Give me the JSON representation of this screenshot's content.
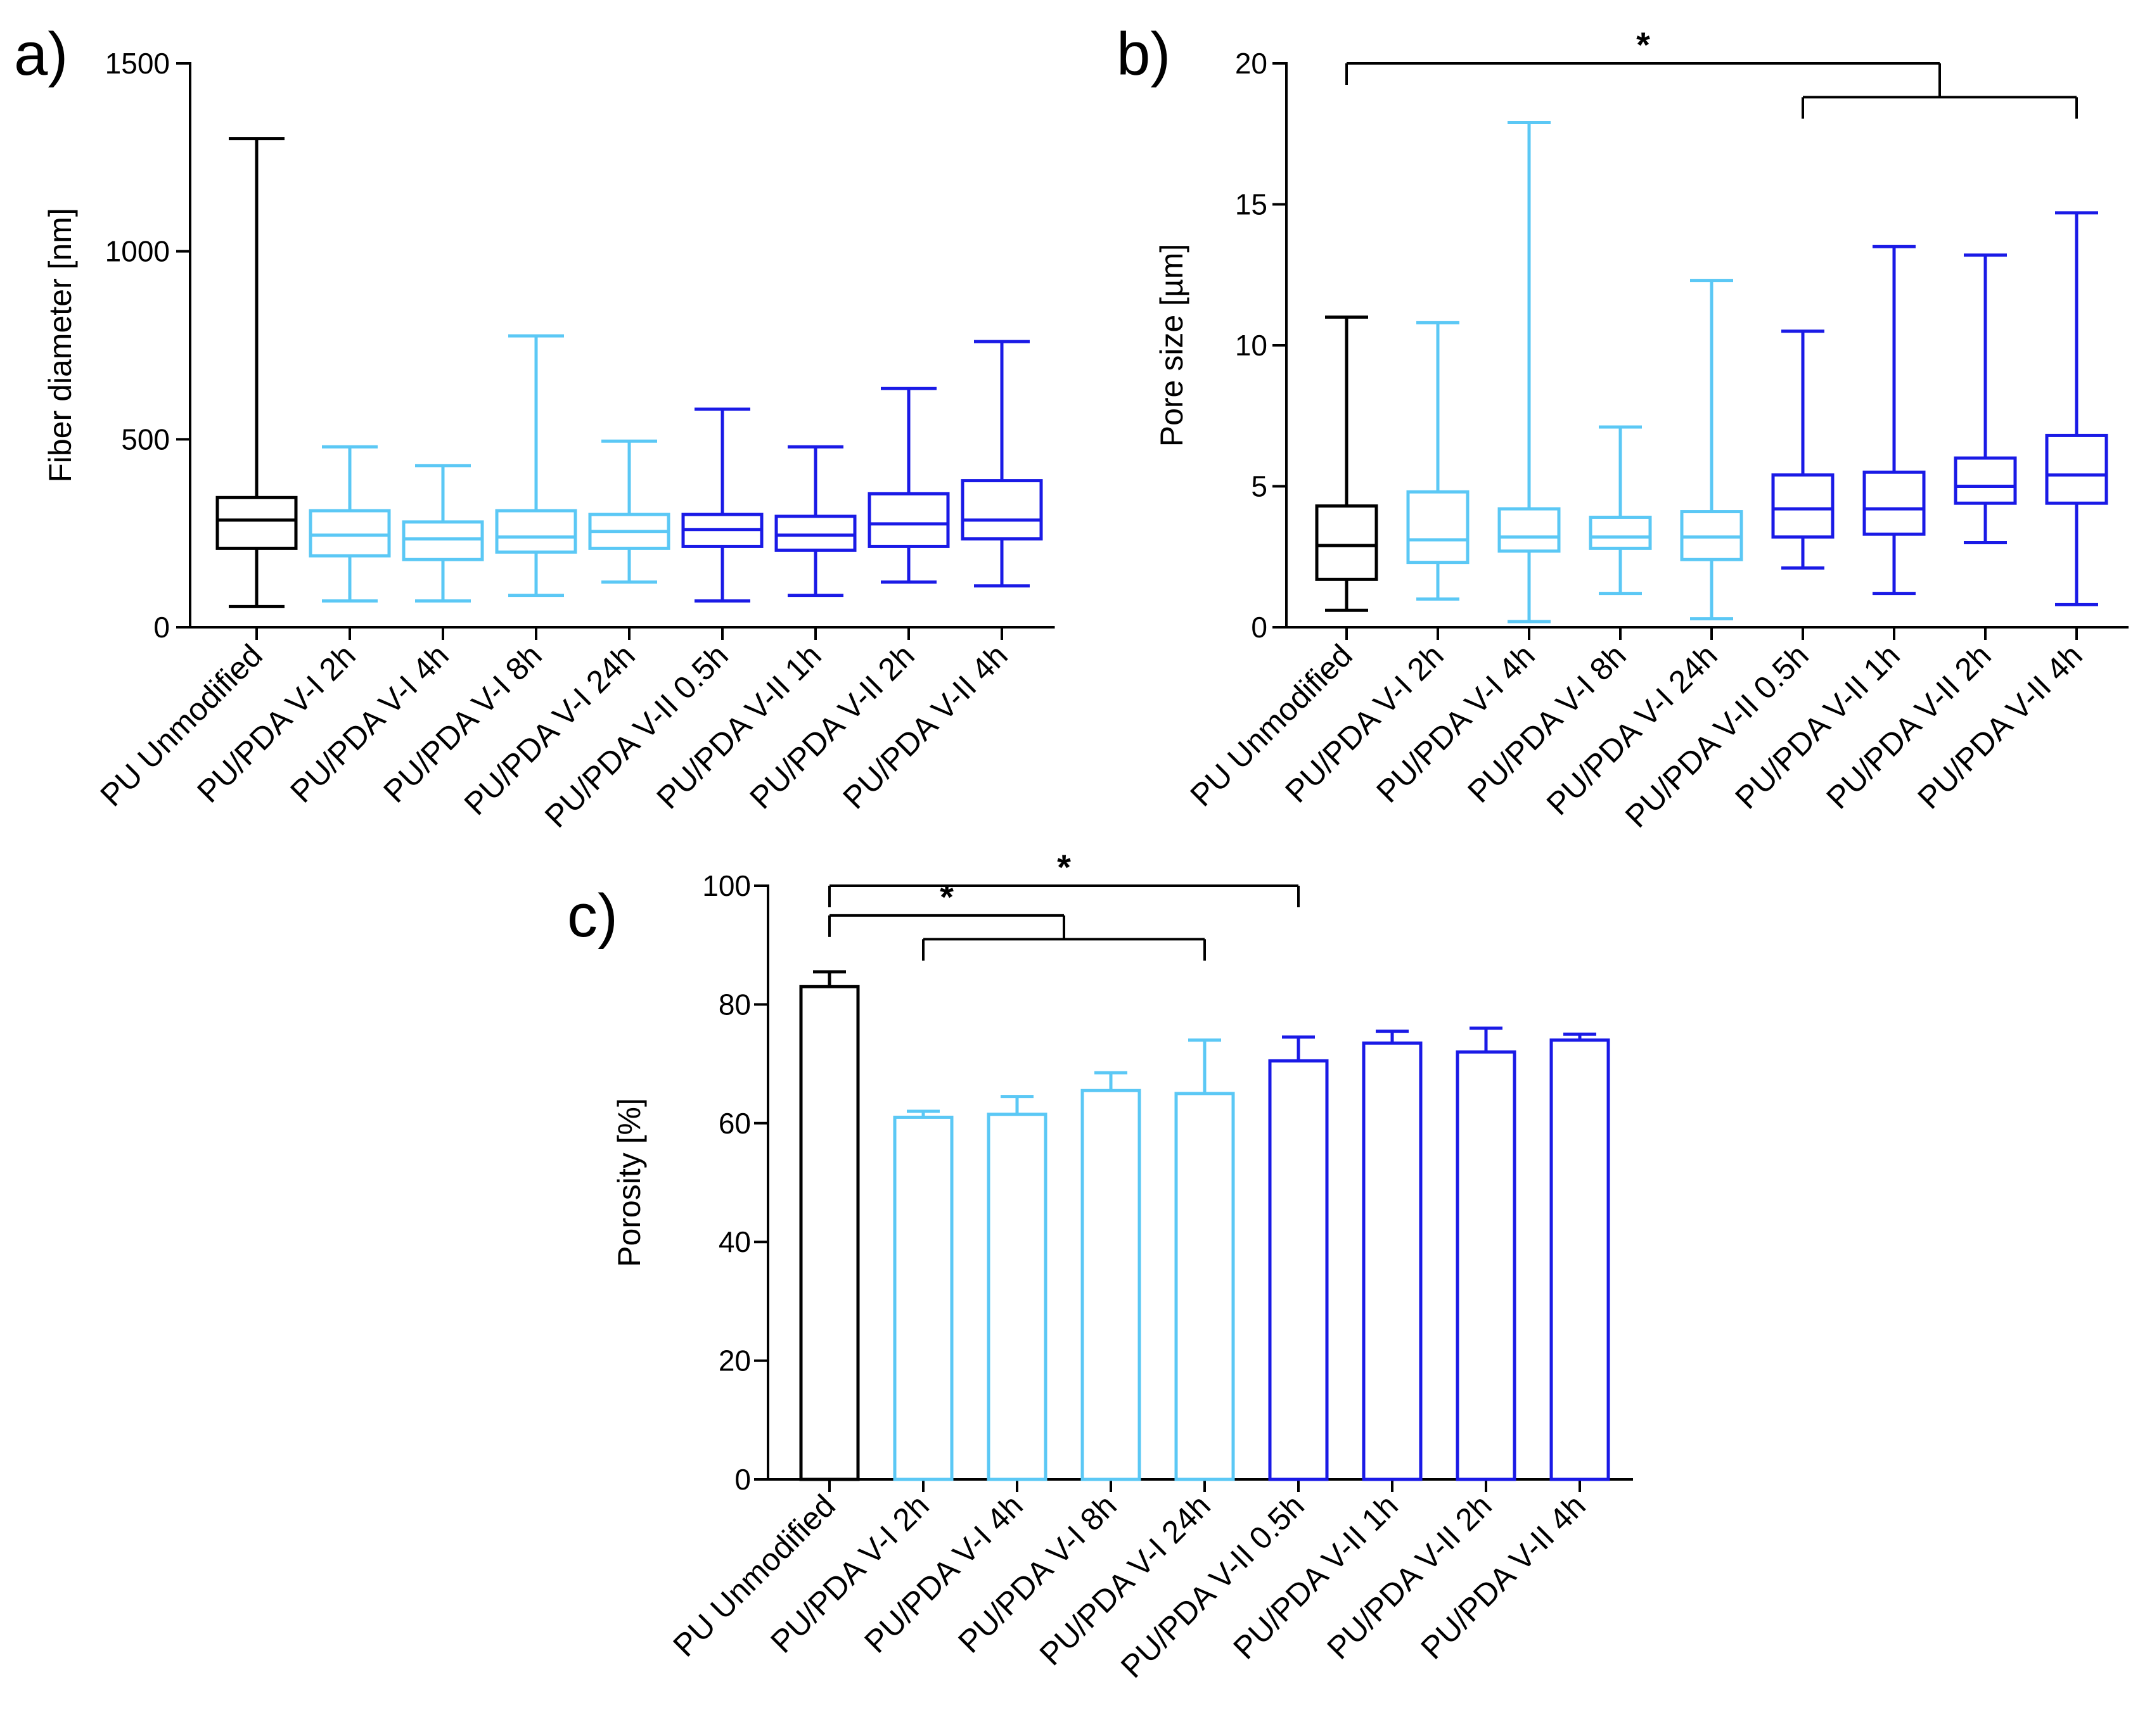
{
  "colors": {
    "black": "#000000",
    "light_blue": "#5bc8f5",
    "blue": "#1a1ae6"
  },
  "category_colors": [
    "black",
    "light_blue",
    "light_blue",
    "light_blue",
    "light_blue",
    "blue",
    "blue",
    "blue",
    "blue"
  ],
  "chart_data": [
    {
      "type": "box",
      "panel": "a)",
      "ylabel": "Fiber diameter [nm]",
      "ylim": [
        0,
        1500
      ],
      "yticks": [
        0,
        500,
        1000,
        1500
      ],
      "categories": [
        "PU Unmodified",
        "PU/PDA V-I 2h",
        "PU/PDA V-I 4h",
        "PU/PDA V-I 8h",
        "PU/PDA V-I 24h",
        "PU/PDA V-II 0.5h",
        "PU/PDA V-II 1h",
        "PU/PDA V-II 2h",
        "PU/PDA V-II 4h"
      ],
      "boxes": [
        {
          "min": 55,
          "q1": 210,
          "median": 285,
          "q3": 345,
          "max": 1300
        },
        {
          "min": 70,
          "q1": 190,
          "median": 245,
          "q3": 310,
          "max": 480
        },
        {
          "min": 70,
          "q1": 180,
          "median": 235,
          "q3": 280,
          "max": 430
        },
        {
          "min": 85,
          "q1": 200,
          "median": 240,
          "q3": 310,
          "max": 775
        },
        {
          "min": 120,
          "q1": 210,
          "median": 255,
          "q3": 300,
          "max": 495
        },
        {
          "min": 70,
          "q1": 215,
          "median": 260,
          "q3": 300,
          "max": 580
        },
        {
          "min": 85,
          "q1": 205,
          "median": 245,
          "q3": 295,
          "max": 480
        },
        {
          "min": 120,
          "q1": 215,
          "median": 275,
          "q3": 355,
          "max": 635
        },
        {
          "min": 110,
          "q1": 235,
          "median": 285,
          "q3": 390,
          "max": 760
        }
      ],
      "significance": []
    },
    {
      "type": "box",
      "panel": "b)",
      "ylabel": "Pore size [µm]",
      "ylim": [
        0,
        20
      ],
      "yticks": [
        0,
        5,
        10,
        15,
        20
      ],
      "categories": [
        "PU Unmodified",
        "PU/PDA V-I 2h",
        "PU/PDA V-I 4h",
        "PU/PDA V-I 8h",
        "PU/PDA V-I 24h",
        "PU/PDA V-II 0.5h",
        "PU/PDA V-II 1h",
        "PU/PDA V-II 2h",
        "PU/PDA V-II 4h"
      ],
      "boxes": [
        {
          "min": 0.6,
          "q1": 1.7,
          "median": 2.9,
          "q3": 4.3,
          "max": 11.0
        },
        {
          "min": 1.0,
          "q1": 2.3,
          "median": 3.1,
          "q3": 4.8,
          "max": 10.8
        },
        {
          "min": 0.2,
          "q1": 2.7,
          "median": 3.2,
          "q3": 4.2,
          "max": 17.9
        },
        {
          "min": 1.2,
          "q1": 2.8,
          "median": 3.2,
          "q3": 3.9,
          "max": 7.1
        },
        {
          "min": 0.3,
          "q1": 2.4,
          "median": 3.2,
          "q3": 4.1,
          "max": 12.3
        },
        {
          "min": 2.1,
          "q1": 3.2,
          "median": 4.2,
          "q3": 5.4,
          "max": 10.5
        },
        {
          "min": 1.2,
          "q1": 3.3,
          "median": 4.2,
          "q3": 5.5,
          "max": 13.5
        },
        {
          "min": 3.0,
          "q1": 4.4,
          "median": 5.0,
          "q3": 6.0,
          "max": 13.2
        },
        {
          "min": 0.8,
          "q1": 4.4,
          "median": 5.4,
          "q3": 6.8,
          "max": 14.7
        }
      ],
      "significance": [
        {
          "left_start": 0,
          "left_end": 0,
          "right_start": 5,
          "right_end": 8,
          "level": 20.0,
          "right_level": 18.8,
          "label": "*"
        }
      ]
    },
    {
      "type": "bar",
      "panel": "c)",
      "ylabel": "Porosity [%]",
      "ylim": [
        0,
        100
      ],
      "yticks": [
        0,
        20,
        40,
        60,
        80,
        100
      ],
      "categories": [
        "PU Unmodified",
        "PU/PDA V-I 2h",
        "PU/PDA V-I 4h",
        "PU/PDA V-I 8h",
        "PU/PDA V-I 24h",
        "PU/PDA V-II 0.5h",
        "PU/PDA V-II 1h",
        "PU/PDA V-II 2h",
        "PU/PDA V-II 4h"
      ],
      "values": [
        83,
        61,
        61.5,
        65.5,
        65,
        70.5,
        73.5,
        72,
        74
      ],
      "errors": [
        2.5,
        1,
        3,
        3,
        9,
        4,
        2,
        4,
        1
      ],
      "significance": [
        {
          "left_start": 0,
          "left_end": 0,
          "right_start": 5,
          "right_end": 5,
          "level": 100,
          "right_level": 100,
          "label": "*"
        },
        {
          "left_start": 0,
          "left_end": 0,
          "right_start": 1,
          "right_end": 4,
          "level": 95,
          "right_level": 91,
          "label": "*"
        }
      ]
    }
  ]
}
